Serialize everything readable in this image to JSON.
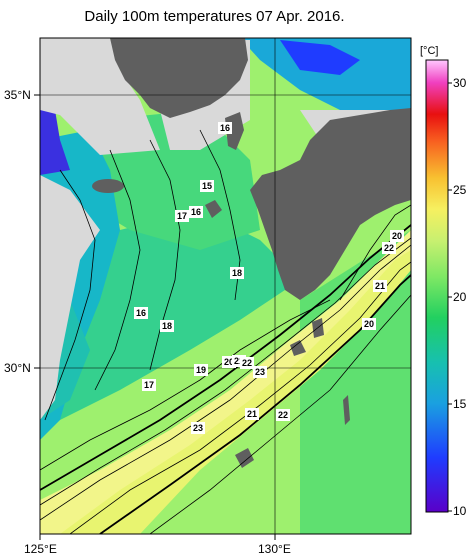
{
  "title": "Daily 100m temperatures 07 Apr. 2016.",
  "axes": {
    "lat_labels": [
      "35°N",
      "30°N"
    ],
    "lon_labels": [
      "125°E",
      "130°E"
    ]
  },
  "colorbar": {
    "unit": "[°C]",
    "ticks": [
      "30",
      "25",
      "20",
      "15",
      "10"
    ],
    "min": 10,
    "max": 31
  },
  "contour_labels": [
    "16",
    "15",
    "17",
    "16",
    "18",
    "16",
    "18",
    "17",
    "19",
    "20",
    "21",
    "22",
    "23",
    "23",
    "21",
    "22",
    "21",
    "20",
    "20",
    "22"
  ],
  "colors": {
    "land": "#5f5f5f",
    "nodata": "#d9d9d9",
    "cool": "#17b7c8",
    "mid": "#35d08e",
    "warm": "#9ef06e",
    "hot": "#f2f58a"
  }
}
